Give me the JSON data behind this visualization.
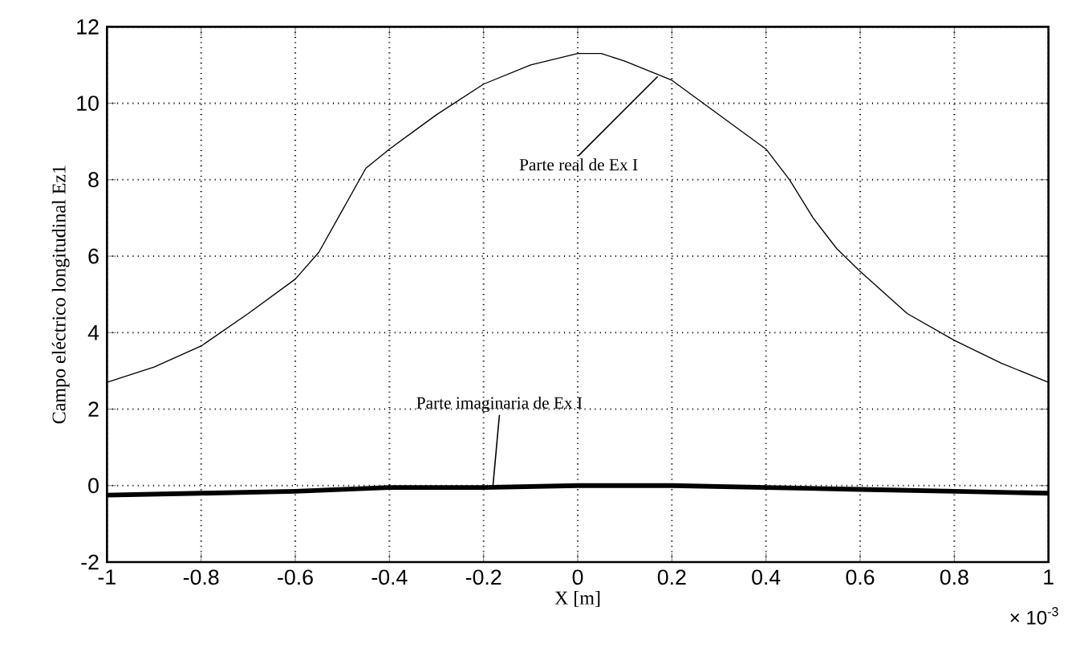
{
  "chart_data": {
    "type": "line",
    "xlabel": "X [m]",
    "ylabel": "Campo eléctrico longitudinal Ez1",
    "x": [
      -1,
      -0.9,
      -0.8,
      -0.7,
      -0.6,
      -0.55,
      -0.5,
      -0.45,
      -0.4,
      -0.3,
      -0.2,
      -0.1,
      0,
      0.05,
      0.1,
      0.2,
      0.3,
      0.4,
      0.45,
      0.5,
      0.55,
      0.6,
      0.7,
      0.8,
      0.9,
      1
    ],
    "series": [
      {
        "color": "#000000",
        "values": [
          2.7,
          3.1,
          3.65,
          4.5,
          5.4,
          6.1,
          7.2,
          8.3,
          8.8,
          9.7,
          10.5,
          11.0,
          11.3,
          11.3,
          11.1,
          10.6,
          9.7,
          8.8,
          8.0,
          7.0,
          6.2,
          5.6,
          4.5,
          3.8,
          3.2,
          2.7
        ]
      },
      {
        "color": "#000000",
        "x": [
          -1,
          -0.8,
          -0.6,
          -0.4,
          -0.2,
          0,
          0.2,
          0.4,
          0.6,
          0.8,
          1
        ],
        "values": [
          -0.25,
          -0.2,
          -0.15,
          -0.05,
          -0.05,
          0,
          0,
          -0.05,
          -0.1,
          -0.15,
          -0.2
        ]
      }
    ],
    "xlim": [
      -1,
      1
    ],
    "ylim": [
      -2,
      12
    ],
    "xticks": [
      -1,
      -0.8,
      -0.6,
      -0.4,
      -0.2,
      0,
      0.2,
      0.4,
      0.6,
      0.8,
      1
    ],
    "yticks": [
      -2,
      0,
      2,
      4,
      6,
      8,
      10,
      12
    ],
    "grid": true,
    "annotations": [
      {
        "text": "Parte real de Ex I",
        "x": 0.17,
        "y": 10.7
      },
      {
        "text": "Parte imaginaria de Ex I",
        "x": -0.18,
        "y": 0
      },
      "× 10$^{-3}$"
    ]
  }
}
